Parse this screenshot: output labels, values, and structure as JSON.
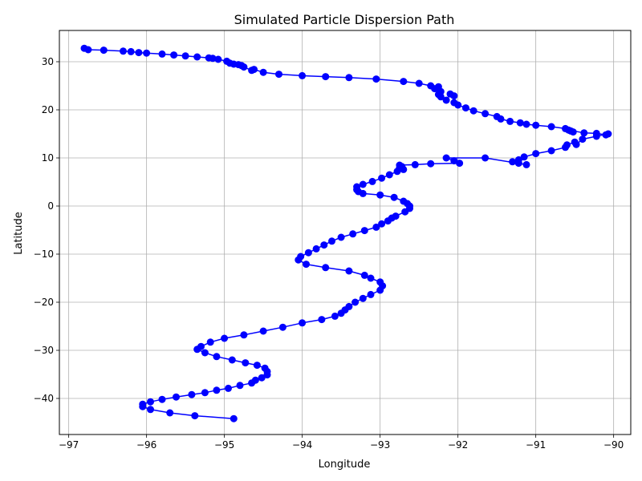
{
  "chart_data": {
    "type": "line",
    "title": "Simulated Particle Dispersion Path",
    "xlabel": "Longitude",
    "ylabel": "Latitude",
    "xlim": [
      -97.12,
      -89.78
    ],
    "ylim": [
      -47.5,
      36.5
    ],
    "xticks": [
      -97,
      -96,
      -95,
      -94,
      -93,
      -92,
      -91,
      -90
    ],
    "yticks": [
      -40,
      -30,
      -20,
      -10,
      0,
      10,
      20,
      30
    ],
    "grid": true,
    "color": "#0000ff",
    "marker": "circle",
    "series": [
      {
        "points": [
          [
            -96.8,
            32.8
          ],
          [
            -96.75,
            32.5
          ],
          [
            -96.55,
            32.4
          ],
          [
            -96.3,
            32.2
          ],
          [
            -96.2,
            32.1
          ],
          [
            -96.1,
            31.9
          ],
          [
            -96.0,
            31.8
          ],
          [
            -95.8,
            31.6
          ],
          [
            -95.65,
            31.4
          ],
          [
            -95.5,
            31.2
          ],
          [
            -95.35,
            31.0
          ],
          [
            -95.2,
            30.8
          ],
          [
            -95.15,
            30.7
          ],
          [
            -95.08,
            30.5
          ],
          [
            -94.97,
            30.1
          ],
          [
            -94.93,
            29.7
          ],
          [
            -94.88,
            29.5
          ],
          [
            -94.82,
            29.4
          ],
          [
            -94.78,
            29.2
          ],
          [
            -94.75,
            28.9
          ],
          [
            -94.65,
            28.2
          ],
          [
            -94.62,
            28.4
          ],
          [
            -94.5,
            27.8
          ],
          [
            -94.3,
            27.4
          ],
          [
            -94.0,
            27.1
          ],
          [
            -93.7,
            26.9
          ],
          [
            -93.4,
            26.7
          ],
          [
            -93.05,
            26.4
          ],
          [
            -92.7,
            25.9
          ],
          [
            -92.5,
            25.5
          ],
          [
            -92.35,
            25.0
          ],
          [
            -92.3,
            24.4
          ],
          [
            -92.25,
            24.8
          ],
          [
            -92.22,
            23.8
          ],
          [
            -92.25,
            23.2
          ],
          [
            -92.22,
            22.7
          ],
          [
            -92.15,
            22.0
          ],
          [
            -92.1,
            23.3
          ],
          [
            -92.05,
            22.9
          ],
          [
            -92.05,
            21.5
          ],
          [
            -92.0,
            21.0
          ],
          [
            -91.9,
            20.4
          ],
          [
            -91.8,
            19.8
          ],
          [
            -91.65,
            19.2
          ],
          [
            -91.5,
            18.6
          ],
          [
            -91.45,
            18.1
          ],
          [
            -91.33,
            17.6
          ],
          [
            -91.2,
            17.3
          ],
          [
            -91.12,
            17.0
          ],
          [
            -91.0,
            16.8
          ],
          [
            -90.8,
            16.5
          ],
          [
            -90.62,
            16.1
          ],
          [
            -90.55,
            15.6
          ],
          [
            -90.52,
            15.4
          ],
          [
            -90.58,
            15.8
          ],
          [
            -90.38,
            15.2
          ],
          [
            -90.22,
            15.1
          ],
          [
            -90.1,
            14.8
          ],
          [
            -90.07,
            15.0
          ],
          [
            -90.22,
            14.5
          ],
          [
            -90.4,
            13.9
          ],
          [
            -90.48,
            12.8
          ],
          [
            -90.5,
            13.3
          ],
          [
            -90.6,
            12.7
          ],
          [
            -90.62,
            12.2
          ],
          [
            -90.8,
            11.5
          ],
          [
            -91.0,
            10.9
          ],
          [
            -91.15,
            10.2
          ],
          [
            -91.22,
            9.6
          ],
          [
            -91.3,
            9.2
          ],
          [
            -91.22,
            8.9
          ],
          [
            -91.12,
            8.6
          ],
          [
            -91.65,
            10.0
          ],
          [
            -92.15,
            10.0
          ],
          [
            -92.05,
            9.4
          ],
          [
            -91.98,
            8.9
          ],
          [
            -92.35,
            8.8
          ],
          [
            -92.55,
            8.6
          ],
          [
            -92.75,
            8.5
          ],
          [
            -92.72,
            8.2
          ],
          [
            -92.75,
            7.9
          ],
          [
            -92.7,
            7.6
          ],
          [
            -92.78,
            7.2
          ],
          [
            -92.88,
            6.5
          ],
          [
            -92.98,
            5.8
          ],
          [
            -93.1,
            5.1
          ],
          [
            -93.22,
            4.5
          ],
          [
            -93.3,
            4.0
          ],
          [
            -93.3,
            3.4
          ],
          [
            -93.28,
            3.0
          ],
          [
            -93.22,
            2.6
          ],
          [
            -93.0,
            2.3
          ],
          [
            -92.82,
            1.8
          ],
          [
            -92.7,
            1.0
          ],
          [
            -92.65,
            0.5
          ],
          [
            -92.62,
            0.0
          ],
          [
            -92.62,
            -0.5
          ],
          [
            -92.68,
            -1.2
          ],
          [
            -92.8,
            -2.1
          ],
          [
            -92.85,
            -2.5
          ],
          [
            -92.9,
            -3.1
          ],
          [
            -92.98,
            -3.7
          ],
          [
            -93.05,
            -4.4
          ],
          [
            -93.2,
            -5.1
          ],
          [
            -93.35,
            -5.8
          ],
          [
            -93.5,
            -6.5
          ],
          [
            -93.62,
            -7.3
          ],
          [
            -93.72,
            -8.1
          ],
          [
            -93.82,
            -8.9
          ],
          [
            -93.92,
            -9.7
          ],
          [
            -94.02,
            -10.5
          ],
          [
            -94.05,
            -11.2
          ],
          [
            -93.95,
            -12.1
          ],
          [
            -93.7,
            -12.8
          ],
          [
            -93.4,
            -13.5
          ],
          [
            -93.2,
            -14.4
          ],
          [
            -93.12,
            -15.0
          ],
          [
            -93.0,
            -15.8
          ],
          [
            -92.97,
            -16.6
          ],
          [
            -93.0,
            -17.5
          ],
          [
            -93.12,
            -18.4
          ],
          [
            -93.22,
            -19.2
          ],
          [
            -93.32,
            -20.0
          ],
          [
            -93.4,
            -20.9
          ],
          [
            -93.45,
            -21.6
          ],
          [
            -93.5,
            -22.3
          ],
          [
            -93.58,
            -22.9
          ],
          [
            -93.75,
            -23.6
          ],
          [
            -94.0,
            -24.3
          ],
          [
            -94.25,
            -25.2
          ],
          [
            -94.5,
            -26.0
          ],
          [
            -94.75,
            -26.8
          ],
          [
            -95.0,
            -27.5
          ],
          [
            -95.18,
            -28.3
          ],
          [
            -95.3,
            -29.2
          ],
          [
            -95.35,
            -29.8
          ],
          [
            -95.25,
            -30.5
          ],
          [
            -95.1,
            -31.3
          ],
          [
            -94.9,
            -32.0
          ],
          [
            -94.73,
            -32.6
          ],
          [
            -94.58,
            -33.1
          ],
          [
            -94.48,
            -33.7
          ],
          [
            -94.45,
            -34.4
          ],
          [
            -94.45,
            -35.1
          ],
          [
            -94.52,
            -35.7
          ],
          [
            -94.6,
            -36.2
          ],
          [
            -94.65,
            -36.8
          ],
          [
            -94.8,
            -37.3
          ],
          [
            -94.95,
            -37.9
          ],
          [
            -95.1,
            -38.3
          ],
          [
            -95.25,
            -38.8
          ],
          [
            -95.42,
            -39.2
          ],
          [
            -95.62,
            -39.7
          ],
          [
            -95.8,
            -40.2
          ],
          [
            -95.95,
            -40.7
          ],
          [
            -96.05,
            -41.2
          ],
          [
            -96.05,
            -41.7
          ],
          [
            -95.95,
            -42.3
          ],
          [
            -95.7,
            -43.0
          ],
          [
            -95.38,
            -43.6
          ],
          [
            -94.88,
            -44.2
          ]
        ]
      }
    ]
  }
}
